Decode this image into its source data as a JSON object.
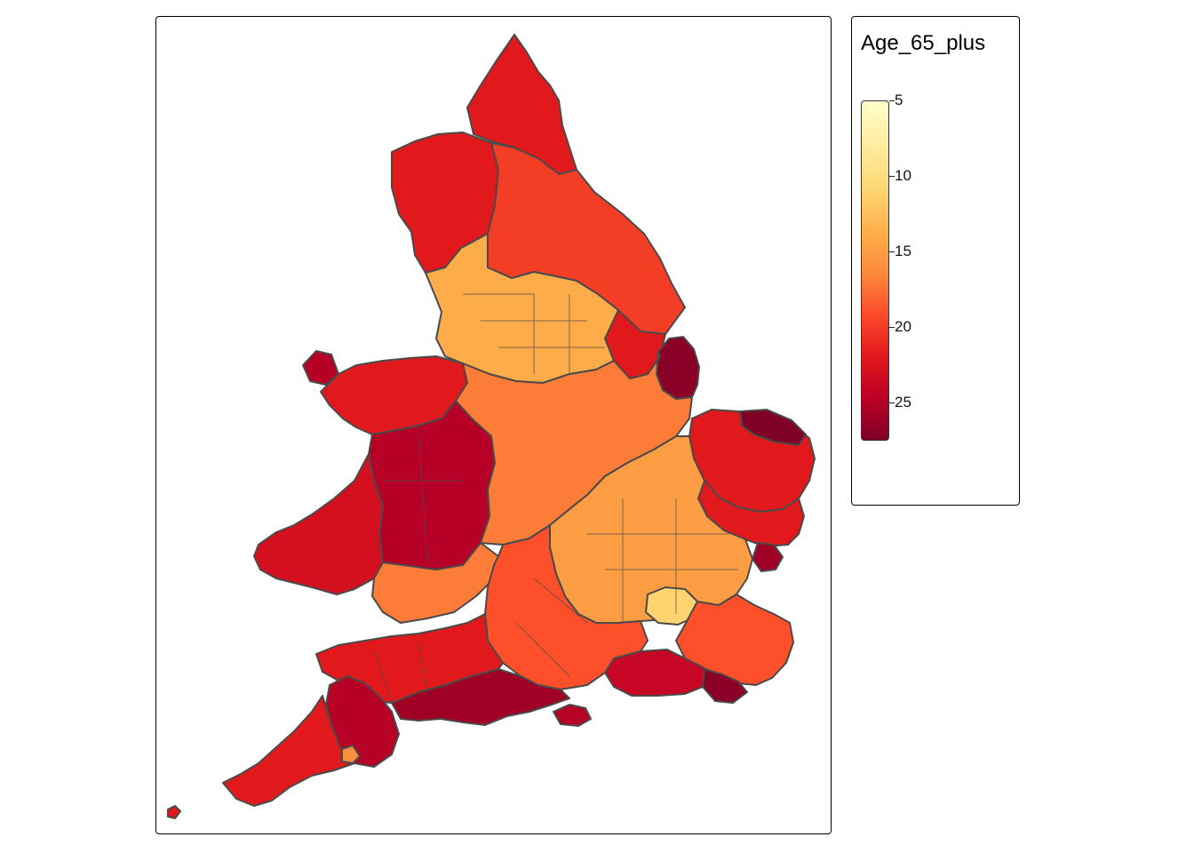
{
  "legend": {
    "title": "Age_65_plus",
    "ticks": [
      {
        "value": 5,
        "label": "5"
      },
      {
        "value": 10,
        "label": "10"
      },
      {
        "value": 15,
        "label": "15"
      },
      {
        "value": 20,
        "label": "20"
      },
      {
        "value": 25,
        "label": "25"
      }
    ],
    "range": [
      5,
      27.5
    ],
    "colors": [
      "#ffffcc",
      "#ffeda0",
      "#fed976",
      "#feb24c",
      "#fd8d3c",
      "#fc4e2a",
      "#e31a1c",
      "#bd0026",
      "#800026"
    ]
  },
  "map": {
    "variable": "Age_65_plus",
    "border_color": "#4a4a4a",
    "regions": [
      {
        "area": "northumberland",
        "value": 22
      },
      {
        "area": "cumbria",
        "value": 22
      },
      {
        "area": "durham-north-yorkshire",
        "value": 20
      },
      {
        "area": "east-riding",
        "value": 22
      },
      {
        "area": "lancashire-merseyside-manchester-yorkshire",
        "value": 14
      },
      {
        "area": "anglesey",
        "value": 25
      },
      {
        "area": "north-wales",
        "value": 22
      },
      {
        "area": "powys",
        "value": 25
      },
      {
        "area": "pembrokeshire-carmarthenshire",
        "value": 23
      },
      {
        "area": "south-wales-valleys",
        "value": 17
      },
      {
        "area": "lincolnshire-coast",
        "value": 27
      },
      {
        "area": "midlands",
        "value": 17
      },
      {
        "area": "norfolk",
        "value": 22
      },
      {
        "area": "north-norfolk",
        "value": 28
      },
      {
        "area": "suffolk",
        "value": 22
      },
      {
        "area": "tendring",
        "value": 26
      },
      {
        "area": "home-counties",
        "value": 15
      },
      {
        "area": "london",
        "value": 11
      },
      {
        "area": "kent",
        "value": 19
      },
      {
        "area": "rother",
        "value": 27
      },
      {
        "area": "sussex-coast",
        "value": 24
      },
      {
        "area": "wiltshire-hampshire",
        "value": 19
      },
      {
        "area": "isle-of-wight",
        "value": 25
      },
      {
        "area": "dorset",
        "value": 26
      },
      {
        "area": "somerset-north-devon",
        "value": 22
      },
      {
        "area": "torridge-west-devon",
        "value": 25
      },
      {
        "area": "cornwall",
        "value": 22
      },
      {
        "area": "plymouth",
        "value": 16
      },
      {
        "area": "isles-of-scilly",
        "value": 22
      }
    ]
  }
}
